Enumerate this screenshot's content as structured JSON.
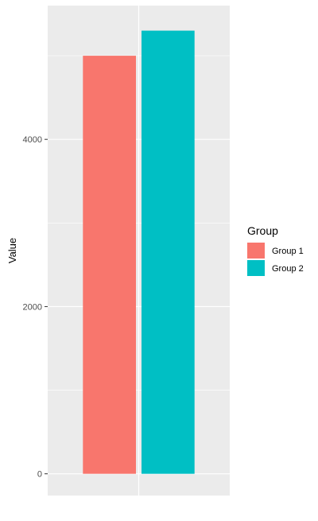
{
  "chart_data": {
    "type": "bar",
    "ylabel": "Value",
    "xlabel": "",
    "categories": [
      "Group 1",
      "Group 2"
    ],
    "values": [
      5000,
      5300
    ],
    "colors": [
      "#F8766D",
      "#00BFC4"
    ],
    "ylim": [
      -260,
      5600
    ],
    "y_ticks": [
      0,
      2000,
      4000
    ],
    "y_minor_ticks": [
      1000,
      3000,
      5000
    ],
    "grid": true,
    "panel_background": "#EBEBEB",
    "grid_color": "#FFFFFF",
    "legend": {
      "title": "Group",
      "position": "right",
      "entries": [
        "Group 1",
        "Group 2"
      ]
    }
  }
}
